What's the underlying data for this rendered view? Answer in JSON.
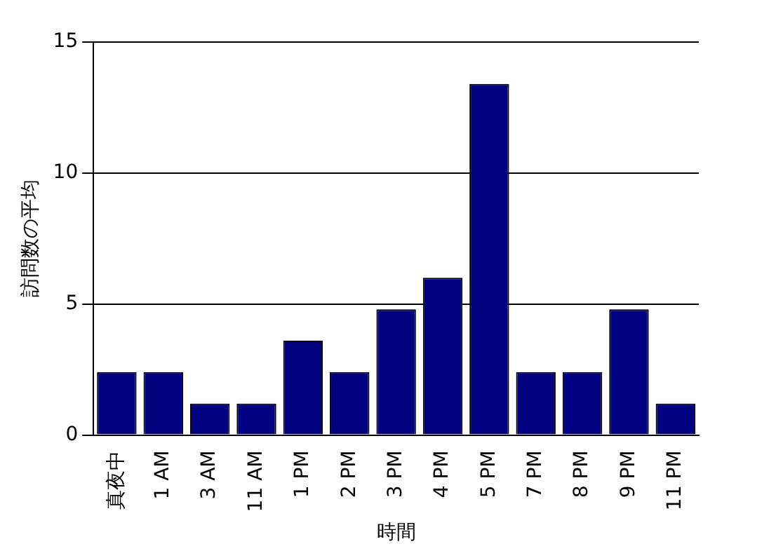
{
  "chart_data": {
    "type": "bar",
    "xlabel": "時間",
    "ylabel": "訪問数の平均",
    "categories": [
      "真夜中",
      "1 AM",
      "3 AM",
      "11 AM",
      "1 PM",
      "2 PM",
      "3 PM",
      "4 PM",
      "5 PM",
      "7 PM",
      "8 PM",
      "9 PM",
      "11 PM"
    ],
    "values": [
      2.4,
      2.4,
      1.2,
      1.2,
      3.6,
      2.4,
      4.8,
      6,
      13.4,
      2.4,
      2.4,
      4.8,
      1.2
    ],
    "color": "#000080",
    "ylim": [
      0,
      15
    ],
    "yticks": [
      0,
      5,
      10,
      15
    ],
    "grid": "y",
    "legend": false
  }
}
